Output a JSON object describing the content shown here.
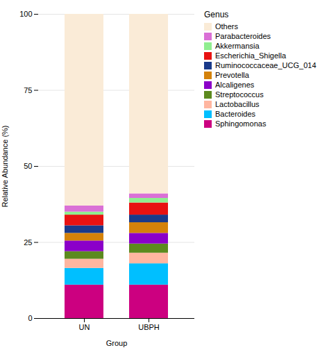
{
  "chart_data": {
    "type": "bar",
    "stacked": true,
    "categories": [
      "UN",
      "UBPH"
    ],
    "xlabel": "Group",
    "ylabel": "Relative Abundance (%)",
    "ylim": [
      0,
      100
    ],
    "yticks": [
      0,
      25,
      50,
      75,
      100
    ],
    "grid": true,
    "legend": "right",
    "legend_title": "Genus",
    "series": [
      {
        "name": "Sphingomonas",
        "color": "#CC0080",
        "values": [
          11.0,
          11.0
        ]
      },
      {
        "name": "Bacteroides",
        "color": "#00BFFF",
        "values": [
          5.5,
          7.0
        ]
      },
      {
        "name": "Lactobacillus",
        "color": "#FFB6A0",
        "values": [
          3.0,
          3.5
        ]
      },
      {
        "name": "Streptococcus",
        "color": "#5C8A1E",
        "values": [
          2.5,
          3.0
        ]
      },
      {
        "name": "Alcaligenes",
        "color": "#8B00C9",
        "values": [
          3.5,
          3.5
        ]
      },
      {
        "name": "Prevotella",
        "color": "#D4820A",
        "values": [
          2.5,
          3.5
        ]
      },
      {
        "name": "Ruminococcaceae_UCG_014",
        "color": "#1A3A8A",
        "values": [
          2.5,
          2.5
        ]
      },
      {
        "name": "Escherichia_Shigella",
        "color": "#E81212",
        "values": [
          3.5,
          4.0
        ]
      },
      {
        "name": "Akkermansia",
        "color": "#90EE90",
        "values": [
          1.0,
          1.5
        ]
      },
      {
        "name": "Parabacteroides",
        "color": "#DA70D6",
        "values": [
          2.0,
          1.5
        ]
      },
      {
        "name": "Others",
        "color": "#FAEBD7",
        "values": [
          63.0,
          59.0
        ]
      }
    ]
  }
}
